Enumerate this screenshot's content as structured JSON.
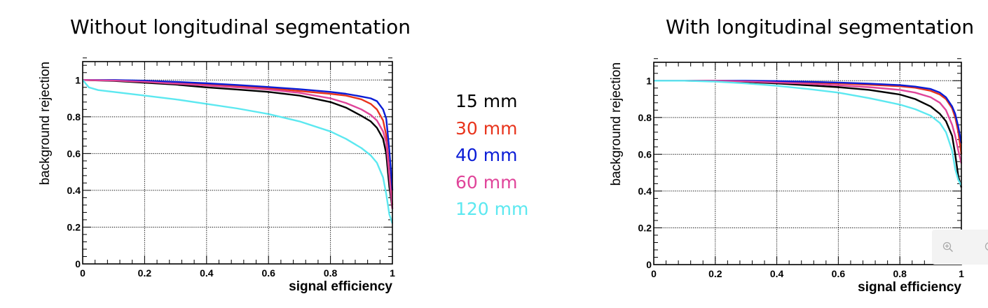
{
  "colors": {
    "15 mm": "#000000",
    "30 mm": "#e8341c",
    "40 mm": "#0a1cd6",
    "60 mm": "#e0459a",
    "120 mm": "#5ce8f0"
  },
  "legend": {
    "items": [
      {
        "label": "15 mm",
        "color": "#000000"
      },
      {
        "label": "30 mm",
        "color": "#e8341c"
      },
      {
        "label": "40 mm",
        "color": "#0a1cd6"
      },
      {
        "label": "60 mm",
        "color": "#e0459a"
      },
      {
        "label": "120 mm",
        "color": "#5ce8f0"
      }
    ]
  },
  "widgets": {
    "zoom_icon": "zoom-in-icon",
    "extra_icon": "zoom-reset-icon"
  },
  "chart_data": [
    {
      "type": "line",
      "title": "Without longitudinal segmentation",
      "xlabel": "signal efficiency",
      "ylabel": "background rejection",
      "xlim": [
        0,
        1
      ],
      "ylim": [
        0,
        1.1
      ],
      "xticks": [
        "0",
        "0.2",
        "0.4",
        "0.6",
        "0.8",
        "1"
      ],
      "yticks": [
        "0",
        "0.2",
        "0.4",
        "0.6",
        "0.8",
        "1"
      ],
      "grid": true,
      "series": [
        {
          "name": "15 mm",
          "x": [
            0,
            0.1,
            0.2,
            0.3,
            0.4,
            0.5,
            0.6,
            0.7,
            0.8,
            0.85,
            0.9,
            0.93,
            0.95,
            0.97,
            0.98,
            0.99,
            1.0
          ],
          "y": [
            1.0,
            0.995,
            0.985,
            0.975,
            0.96,
            0.948,
            0.935,
            0.915,
            0.88,
            0.85,
            0.805,
            0.775,
            0.74,
            0.68,
            0.6,
            0.42,
            0.3
          ]
        },
        {
          "name": "30 mm",
          "x": [
            0,
            0.1,
            0.2,
            0.3,
            0.4,
            0.5,
            0.6,
            0.7,
            0.8,
            0.85,
            0.9,
            0.93,
            0.95,
            0.97,
            0.98,
            0.99,
            1.0
          ],
          "y": [
            1.0,
            0.998,
            0.992,
            0.984,
            0.975,
            0.965,
            0.955,
            0.94,
            0.925,
            0.915,
            0.895,
            0.87,
            0.84,
            0.78,
            0.7,
            0.5,
            0.32
          ]
        },
        {
          "name": "40 mm",
          "x": [
            0,
            0.1,
            0.2,
            0.3,
            0.4,
            0.5,
            0.6,
            0.7,
            0.8,
            0.85,
            0.9,
            0.93,
            0.95,
            0.97,
            0.98,
            0.99,
            1.0
          ],
          "y": [
            1.0,
            1.0,
            0.996,
            0.99,
            0.982,
            0.973,
            0.962,
            0.95,
            0.935,
            0.925,
            0.91,
            0.9,
            0.885,
            0.84,
            0.79,
            0.62,
            0.4
          ]
        },
        {
          "name": "60 mm",
          "x": [
            0,
            0.1,
            0.2,
            0.3,
            0.4,
            0.5,
            0.6,
            0.7,
            0.8,
            0.85,
            0.9,
            0.93,
            0.95,
            0.97,
            0.98,
            0.99,
            1.0
          ],
          "y": [
            1.0,
            0.997,
            0.99,
            0.98,
            0.97,
            0.96,
            0.948,
            0.93,
            0.9,
            0.875,
            0.84,
            0.81,
            0.78,
            0.72,
            0.66,
            0.48,
            0.3
          ]
        },
        {
          "name": "120 mm",
          "x": [
            0,
            0.02,
            0.05,
            0.1,
            0.2,
            0.3,
            0.4,
            0.5,
            0.6,
            0.7,
            0.8,
            0.85,
            0.9,
            0.93,
            0.95,
            0.97,
            0.98,
            0.99,
            1.0
          ],
          "y": [
            1.0,
            0.96,
            0.945,
            0.935,
            0.915,
            0.895,
            0.87,
            0.845,
            0.815,
            0.775,
            0.72,
            0.68,
            0.63,
            0.59,
            0.55,
            0.47,
            0.38,
            0.27,
            0.22
          ]
        }
      ]
    },
    {
      "type": "line",
      "title": "With longitudinal segmentation",
      "xlabel": "signal efficiency",
      "ylabel": "background rejection",
      "xlim": [
        0,
        1
      ],
      "ylim": [
        0,
        1.1
      ],
      "xticks": [
        "0",
        "0.2",
        "0.4",
        "0.6",
        "0.8",
        "1"
      ],
      "yticks": [
        "0",
        "0.2",
        "0.4",
        "0.6",
        "0.8",
        "1"
      ],
      "grid": true,
      "series": [
        {
          "name": "15 mm",
          "x": [
            0,
            0.1,
            0.2,
            0.3,
            0.4,
            0.5,
            0.6,
            0.7,
            0.8,
            0.85,
            0.9,
            0.93,
            0.95,
            0.97,
            0.98,
            0.99,
            1.0
          ],
          "y": [
            1.0,
            1.0,
            0.998,
            0.993,
            0.985,
            0.975,
            0.965,
            0.95,
            0.925,
            0.9,
            0.86,
            0.82,
            0.78,
            0.7,
            0.6,
            0.48,
            0.42
          ]
        },
        {
          "name": "30 mm",
          "x": [
            0,
            0.1,
            0.2,
            0.3,
            0.4,
            0.5,
            0.6,
            0.7,
            0.8,
            0.85,
            0.9,
            0.93,
            0.95,
            0.97,
            0.98,
            0.99,
            1.0
          ],
          "y": [
            1.0,
            1.0,
            1.0,
            0.998,
            0.995,
            0.99,
            0.985,
            0.978,
            0.97,
            0.962,
            0.945,
            0.925,
            0.9,
            0.85,
            0.8,
            0.72,
            0.6
          ]
        },
        {
          "name": "40 mm",
          "x": [
            0,
            0.1,
            0.2,
            0.3,
            0.4,
            0.5,
            0.6,
            0.7,
            0.8,
            0.85,
            0.9,
            0.93,
            0.95,
            0.97,
            0.98,
            0.99,
            1.0
          ],
          "y": [
            1.0,
            1.0,
            1.0,
            1.0,
            0.998,
            0.994,
            0.99,
            0.984,
            0.976,
            0.968,
            0.955,
            0.935,
            0.91,
            0.86,
            0.82,
            0.75,
            0.66
          ]
        },
        {
          "name": "60 mm",
          "x": [
            0,
            0.1,
            0.2,
            0.3,
            0.4,
            0.5,
            0.6,
            0.7,
            0.8,
            0.85,
            0.9,
            0.93,
            0.95,
            0.97,
            0.98,
            0.99,
            1.0
          ],
          "y": [
            1.0,
            1.0,
            0.999,
            0.996,
            0.99,
            0.983,
            0.975,
            0.965,
            0.95,
            0.935,
            0.91,
            0.88,
            0.84,
            0.76,
            0.7,
            0.62,
            0.55
          ]
        },
        {
          "name": "120 mm",
          "x": [
            0,
            0.1,
            0.2,
            0.3,
            0.4,
            0.5,
            0.6,
            0.7,
            0.8,
            0.85,
            0.9,
            0.93,
            0.95,
            0.97,
            0.98,
            0.99,
            1.0
          ],
          "y": [
            1.0,
            1.0,
            0.995,
            0.985,
            0.972,
            0.955,
            0.935,
            0.905,
            0.87,
            0.845,
            0.81,
            0.77,
            0.72,
            0.62,
            0.52,
            0.46,
            0.43
          ]
        }
      ]
    }
  ]
}
